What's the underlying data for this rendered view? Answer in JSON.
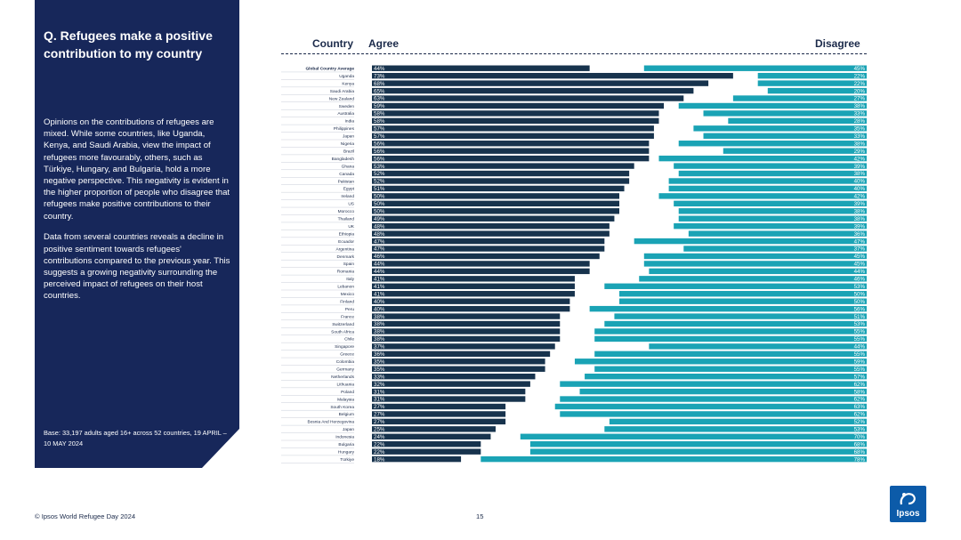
{
  "panel": {
    "title": "Q. Refugees make a positive contribution to my country",
    "paragraphs": [
      "Opinions on the contributions of refugees are mixed. While some countries, like Uganda, Kenya, and Saudi Arabia, view the impact of refugees more favourably, others, such as Türkiye, Hungary, and Bulgaria, hold a more negative perspective. This negativity is evident in the higher proportion of people who disagree that refugees make positive contributions to their country.",
      "Data from several countries reveals a decline in positive sentiment towards refugees' contributions compared to the previous year. This suggests a growing negativity surrounding the perceived impact of refugees on their host countries."
    ],
    "base": "Base: 33,197 adults aged 16+ across 52 countries, 19 APRIL – 10 MAY 2024"
  },
  "headers": {
    "country": "Country",
    "agree": "Agree",
    "disagree": "Disagree"
  },
  "footer": {
    "source": "© Ipsos World Refugee Day 2024",
    "page": "15"
  },
  "logo": {
    "text": "Ipsos"
  },
  "colors": {
    "panel": "#17275a",
    "agree": "#17334d",
    "disagree": "#1aa3b5",
    "label": "#1b2a4a"
  },
  "chart_data": {
    "type": "bar",
    "stacked": true,
    "title": "Q. Refugees make a positive contribution to my country",
    "categories": [
      "Global Country Average",
      "Uganda",
      "Kenya",
      "Saudi Arabia",
      "New Zealand",
      "Sweden",
      "Australia",
      "India",
      "Philippines",
      "Japan",
      "Nigeria",
      "Brazil",
      "Bangladesh",
      "Ghana",
      "Canada",
      "Pakistan",
      "Egypt",
      "Ireland",
      "US",
      "Morocco",
      "Thailand",
      "UK",
      "Ethiopia",
      "Ecuador",
      "Argentina",
      "Denmark",
      "Spain",
      "Romania",
      "Italy",
      "Lebanon",
      "Mexico",
      "Finland",
      "Peru",
      "France",
      "Switzerland",
      "South Africa",
      "Chile",
      "Singapore",
      "Greece",
      "Colombia",
      "Germany",
      "Netherlands",
      "Lithuania",
      "Poland",
      "Malaysia",
      "South Korea",
      "Belgium",
      "Bosnia And Herzegovina",
      "Japan",
      "Indonesia",
      "Bulgaria",
      "Hungary",
      "Türkiye"
    ],
    "series": [
      {
        "name": "Agree",
        "values": [
          44,
          73,
          68,
          65,
          63,
          59,
          58,
          58,
          57,
          57,
          56,
          56,
          56,
          53,
          52,
          52,
          51,
          50,
          50,
          50,
          49,
          48,
          48,
          47,
          47,
          46,
          44,
          44,
          41,
          41,
          41,
          40,
          40,
          38,
          38,
          38,
          38,
          37,
          36,
          35,
          35,
          33,
          32,
          31,
          31,
          27,
          27,
          27,
          25,
          24,
          22,
          22,
          18
        ]
      },
      {
        "name": "Disagree",
        "values": [
          45,
          22,
          22,
          20,
          27,
          38,
          33,
          28,
          35,
          33,
          38,
          29,
          42,
          39,
          38,
          40,
          40,
          42,
          39,
          38,
          38,
          39,
          36,
          47,
          37,
          45,
          45,
          44,
          46,
          53,
          50,
          50,
          56,
          51,
          53,
          55,
          55,
          44,
          55,
          59,
          55,
          57,
          62,
          58,
          62,
          63,
          62,
          52,
          53,
          70,
          68,
          68,
          78
        ]
      }
    ],
    "agree_labels": [
      "44%",
      "73%",
      "68%",
      "65%",
      "63%",
      "59%",
      "58%",
      "58%",
      "57%",
      "57%",
      "56%",
      "56%",
      "56%",
      "53%",
      "52%",
      "52%",
      "51%",
      "50%",
      "50%",
      "50%",
      "49%",
      "48%",
      "48%",
      "47%",
      "47%",
      "46%",
      "44%",
      "44%",
      "41%",
      "41%",
      "41%",
      "40%",
      "40%",
      "38%",
      "38%",
      "38%",
      "38%",
      "37%",
      "36%",
      "35%",
      "35%",
      "33%",
      "32%",
      "31%",
      "31%",
      "27%",
      "27%",
      "27%",
      "25%",
      "24%",
      "22%",
      "22%",
      "18%"
    ],
    "disagree_labels": [
      "45%",
      "22%",
      "22%",
      "20%",
      "27%",
      "38%",
      "33%",
      "28%",
      "35%",
      "33%",
      "38%",
      "29%",
      "42%",
      "39%",
      "38%",
      "40%",
      "40%",
      "42%",
      "39%",
      "38%",
      "38%",
      "39%",
      "36%",
      "47%",
      "37%",
      "45%",
      "45%",
      "44%",
      "46%",
      "53%",
      "50%",
      "50%",
      "56%",
      "51%",
      "53%",
      "55%",
      "55%",
      "44%",
      "55%",
      "59%",
      "55%",
      "57%",
      "62%",
      "58%",
      "62%",
      "63%",
      "62%",
      "52%",
      "53%",
      "70%",
      "68%",
      "68%",
      "78%"
    ],
    "xlim": [
      0,
      100
    ],
    "legend": "none"
  }
}
